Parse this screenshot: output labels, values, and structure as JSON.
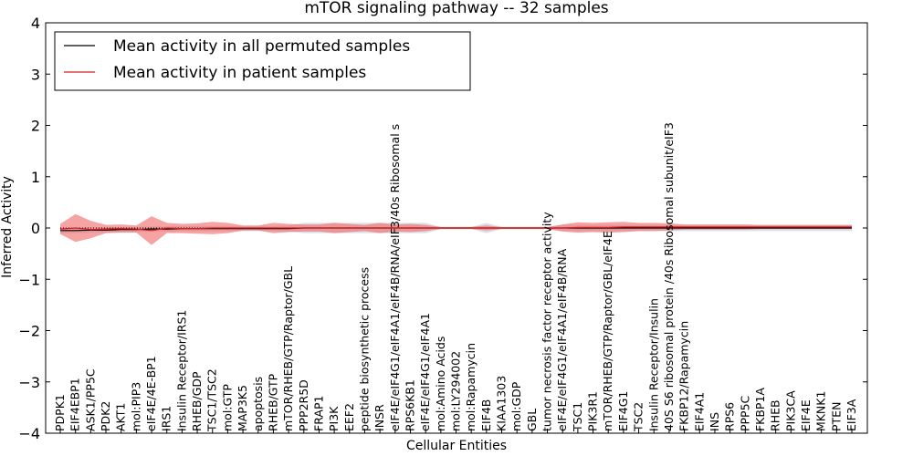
{
  "chart_data": {
    "type": "area",
    "title": "mTOR signaling pathway -- 32 samples",
    "xlabel": "Cellular Entities",
    "ylabel": "Inferred Activity",
    "ylim": [
      -4,
      4
    ],
    "yticks": [
      -4,
      -3,
      -2,
      -1,
      0,
      1,
      2,
      3,
      4
    ],
    "ytick_labels": [
      "−4",
      "−3",
      "−2",
      "−1",
      "0",
      "1",
      "2",
      "3",
      "4"
    ],
    "legend_position": "top-left",
    "categories": [
      "PDPK1",
      "EIF4EBP1",
      "ASK1/PP5C",
      "PDK2",
      "AKT1",
      "mol:PIP3",
      "eIF4E/4E-BP1",
      "IRS1",
      "Insulin Receptor/IRS1",
      "RHEB/GDP",
      "TSC1/TSC2",
      "mol:GTP",
      "MAP3K5",
      "apoptosis",
      "RHEB/GTP",
      "mTOR/RHEB/GTP/Raptor/GBL",
      "PPP2R5D",
      "FRAP1",
      "PI3K",
      "EEF2",
      "peptide biosynthetic process",
      "INSR",
      "eIF4E/eIF4G1/eIF4A1/eIF4B/RNA/eIF3/40s Ribosomal s",
      "RPS6KB1",
      "eIF4E/eIF4G1/eIF4A1",
      "mol:Amino Acids",
      "mol:LY294002",
      "mol:Rapamycin",
      "EIF4B",
      "KIAA1303",
      "mol:GDP",
      "GBL",
      "tumor necrosis factor receptor activity",
      "eIF4E/eIF4G1/eIF4A1/eIF4B/RNA",
      "TSC1",
      "PIK3R1",
      "mTOR/RHEB/GTP/Raptor/GBL/eIF4E",
      "EIF4G1",
      "TSC2",
      "Insulin Receptor/Insulin",
      "40S S6 ribosomal protein /40s Ribosomal subunit/eIF3",
      "FKBP12/Rapamycin",
      "EIF4A1",
      "INS",
      "RPS6",
      "PPP5C",
      "FKBP1A",
      "RHEB",
      "PIK3CA",
      "EIF4E",
      "MKNK1",
      "PTEN",
      "EIF3A"
    ],
    "series": [
      {
        "name": "Mean activity in all permuted samples",
        "color": "#000000",
        "band_color": "#b4b9c8",
        "values": [
          -0.05,
          -0.05,
          -0.04,
          -0.04,
          -0.03,
          -0.03,
          -0.02,
          -0.02,
          -0.01,
          -0.01,
          -0.01,
          -0.01,
          -0.01,
          -0.01,
          -0.01,
          -0.01,
          0,
          0,
          0,
          0,
          0,
          0,
          0,
          0,
          0,
          0,
          0,
          0,
          0,
          0,
          0,
          0,
          0,
          0,
          0,
          0,
          0,
          0,
          0,
          0,
          0,
          0,
          0,
          0,
          0,
          0,
          0,
          0,
          0,
          0,
          0,
          0,
          0
        ],
        "band": [
          0.05,
          0.05,
          0.05,
          0.05,
          0.05,
          0.05,
          0.05,
          0.05,
          0.05,
          0.05,
          0.05,
          0.05,
          0.05,
          0.05,
          0.05,
          0.06,
          0.1,
          0.1,
          0.1,
          0.1,
          0.1,
          0.1,
          0.1,
          0.1,
          0.1,
          0.02,
          0.02,
          0.02,
          0.1,
          0.02,
          0.02,
          0.02,
          0.02,
          0.06,
          0.06,
          0.06,
          0.06,
          0.06,
          0.06,
          0.06,
          0.06,
          0.06,
          0.06,
          0.06,
          0.06,
          0.06,
          0.06,
          0.06,
          0.06,
          0.06,
          0.06,
          0.06,
          0.06
        ]
      },
      {
        "name": "Mean activity in patient samples",
        "color": "#d42020",
        "band_color": "#f06565",
        "values": [
          -0.02,
          0,
          -0.03,
          -0.02,
          -0.01,
          -0.02,
          -0.05,
          0,
          -0.01,
          -0.01,
          0,
          0,
          0,
          0,
          0,
          0,
          0,
          0,
          0,
          0,
          0,
          0,
          0,
          0,
          0,
          0,
          0,
          0,
          0,
          0,
          0,
          0,
          0,
          0,
          0.01,
          0.01,
          0.01,
          0.02,
          0.02,
          0.02,
          0.02,
          0.02,
          0.02,
          0.02,
          0.02,
          0.02,
          0.02,
          0.02,
          0.02,
          0.02,
          0.02,
          0.02,
          0.02
        ],
        "band": [
          0.1,
          0.27,
          0.17,
          0.08,
          0.08,
          0.07,
          0.28,
          0.1,
          0.09,
          0.1,
          0.12,
          0.1,
          0.05,
          0.05,
          0.1,
          0.08,
          0.07,
          0.07,
          0.1,
          0.08,
          0.06,
          0.1,
          0.07,
          0.08,
          0.06,
          0.02,
          0.02,
          0.02,
          0.05,
          0.02,
          0.02,
          0.02,
          0.02,
          0.07,
          0.1,
          0.09,
          0.1,
          0.1,
          0.08,
          0.08,
          0.07,
          0.05,
          0.05,
          0.05,
          0.05,
          0.05,
          0.04,
          0.04,
          0.04,
          0.04,
          0.04,
          0.04,
          0.04
        ]
      }
    ]
  }
}
